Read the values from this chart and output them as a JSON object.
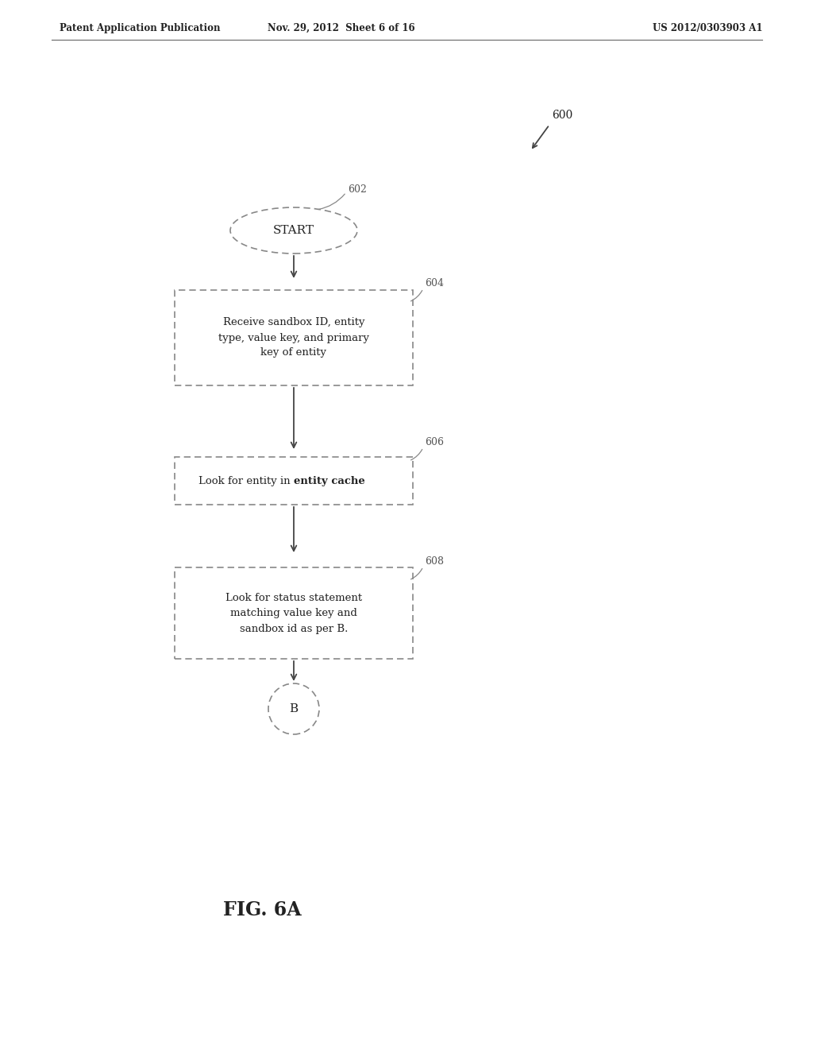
{
  "bg_color": "#ffffff",
  "header_left": "Patent Application Publication",
  "header_mid": "Nov. 29, 2012  Sheet 6 of 16",
  "header_right": "US 2012/0303903 A1",
  "fig_label": "FIG. 6A",
  "diagram_label": "600",
  "node_602_label": "602",
  "node_604_label": "604",
  "node_606_label": "606",
  "node_608_label": "608",
  "start_text": "START",
  "box604_text": "Receive sandbox ID, entity\ntype, value key, and primary\nkey of entity",
  "box606_text": "Look for entity in entity cache",
  "box606_bold": "entity cache",
  "box608_text": "Look for status statement\nmatching value key and\nsandbox id as per B.",
  "connector_text": "B",
  "line_color": "#888888",
  "text_color": "#222222",
  "label_color": "#555555"
}
